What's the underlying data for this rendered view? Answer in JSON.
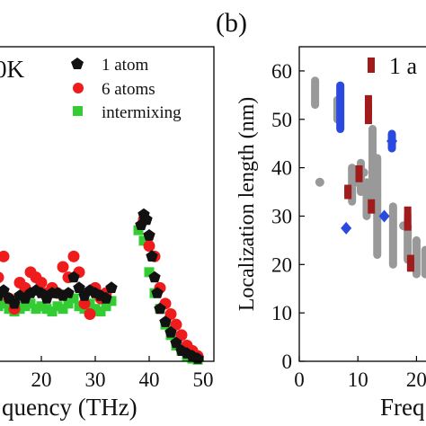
{
  "chart_data": [
    {
      "type": "scatter",
      "panel_label": "",
      "title": "0K",
      "xlabel": "quency (THz)",
      "ylabel": "",
      "xlim": [
        12,
        52
      ],
      "ylim": [
        0,
        60
      ],
      "xticks": [
        "20",
        "30",
        "40",
        "50"
      ],
      "xtick_values": [
        20,
        30,
        40,
        50
      ],
      "legend_position": "top-right",
      "series": [
        {
          "name": "1 atom",
          "marker": "pentagon",
          "color": "#111111",
          "x": [
            12.0,
            13.0,
            14.0,
            15.0,
            16.0,
            17.0,
            18.0,
            19.0,
            20.0,
            21.0,
            22.0,
            23.0,
            24.0,
            25.0,
            26.0,
            27.0,
            28.0,
            29.0,
            30.0,
            31.0,
            32.0,
            33.0,
            38.5,
            39.0,
            39.5,
            40.0,
            40.5,
            41.0,
            41.5,
            42.0,
            43.0,
            44.0,
            45.0,
            46.0,
            47.0,
            48.0,
            49.0
          ],
          "y": [
            12.5,
            13.5,
            12.0,
            11.0,
            12.5,
            12.0,
            13.0,
            13.5,
            13.0,
            12.0,
            13.0,
            13.0,
            12.5,
            13.0,
            16.0,
            14.0,
            12.5,
            13.5,
            13.0,
            12.5,
            12.0,
            14.0,
            26.0,
            28.0,
            27.0,
            24.0,
            20.0,
            16.0,
            13.0,
            10.0,
            7.5,
            5.5,
            3.5,
            2.0,
            1.5,
            1.0,
            0.5
          ]
        },
        {
          "name": "6 atoms",
          "marker": "circle",
          "color": "#ee1c1c",
          "x": [
            12.0,
            13.0,
            14.0,
            15.0,
            16.0,
            17.0,
            18.0,
            19.0,
            20.0,
            21.0,
            22.0,
            23.0,
            24.0,
            25.0,
            26.0,
            27.0,
            28.0,
            29.0,
            30.0,
            31.0,
            32.0,
            39.0,
            40.0,
            41.0,
            42.0,
            43.0,
            44.0,
            45.0,
            46.0,
            47.0,
            48.0,
            49.0
          ],
          "y": [
            16.0,
            20.0,
            12.0,
            10.0,
            15.0,
            14.0,
            17.0,
            16.0,
            15.0,
            13.0,
            14.0,
            13.0,
            18.0,
            16.0,
            20.0,
            17.0,
            11.0,
            9.0,
            14.0,
            12.0,
            13.0,
            27.0,
            22.0,
            20.0,
            14.0,
            11.0,
            9.0,
            7.0,
            5.0,
            3.0,
            2.0,
            1.0
          ]
        },
        {
          "name": "intermixing",
          "marker": "square",
          "color": "#33cc33",
          "x": [
            12.0,
            13.0,
            14.0,
            15.0,
            16.0,
            17.0,
            18.0,
            19.0,
            20.0,
            21.0,
            22.0,
            23.0,
            24.0,
            25.0,
            26.0,
            27.0,
            28.0,
            29.0,
            30.0,
            31.0,
            32.0,
            33.0,
            38.0,
            39.0,
            40.0,
            41.0,
            42.0,
            43.0,
            44.0,
            45.0,
            46.0,
            47.0,
            48.0,
            49.0
          ],
          "y": [
            10.5,
            11.0,
            10.0,
            9.5,
            10.0,
            10.5,
            11.0,
            10.0,
            10.5,
            10.0,
            9.5,
            10.5,
            10.0,
            11.0,
            12.0,
            10.5,
            10.0,
            11.0,
            10.0,
            9.5,
            10.5,
            11.5,
            25.0,
            23.0,
            17.0,
            13.0,
            10.0,
            7.0,
            5.0,
            3.0,
            2.0,
            1.0,
            0.5,
            0.3
          ]
        }
      ]
    },
    {
      "type": "scatter",
      "panel_label": "(b)",
      "title": "",
      "xlabel": "Freq",
      "ylabel": "Localization length (nm)",
      "xlim": [
        0,
        23
      ],
      "ylim": [
        0,
        65
      ],
      "xticks": [
        "0",
        "10",
        "20"
      ],
      "xtick_values": [
        0,
        10,
        20
      ],
      "yticks": [
        "0",
        "10",
        "20",
        "30",
        "40",
        "50",
        "60"
      ],
      "ytick_values": [
        0,
        10,
        20,
        30,
        40,
        50,
        60
      ],
      "legend_position": "top-right",
      "legend_text": "1 a",
      "series": [
        {
          "name": "1 a",
          "marker": "square",
          "color": "#a01c1c",
          "points": [
            [
              8.3,
              35
            ],
            [
              10.2,
              39
            ],
            [
              11.8,
              52
            ],
            [
              12.3,
              32
            ],
            [
              18.5,
              29
            ],
            [
              19.0,
              20
            ]
          ],
          "segments": [
            [
              8.3,
              34,
              36
            ],
            [
              10.2,
              37,
              40
            ],
            [
              11.8,
              49,
              55
            ],
            [
              18.5,
              27,
              32
            ],
            [
              19.0,
              19,
              22
            ]
          ]
        },
        {
          "name": "",
          "marker": "diamond",
          "color": "#2a49e0",
          "points": [
            [
              8.0,
              27.5
            ],
            [
              14.5,
              30.0
            ],
            [
              15.8,
              45.5
            ]
          ],
          "segments": [
            [
              7.0,
              48,
              57
            ],
            [
              15.8,
              44,
              47
            ]
          ]
        },
        {
          "name": "",
          "marker": "circle",
          "color": "#999999",
          "points": [
            [
              3.5,
              37
            ],
            [
              9.5,
              37
            ],
            [
              11.0,
              39
            ],
            [
              17.8,
              28
            ]
          ],
          "segments": [
            [
              2.7,
              53,
              58
            ],
            [
              6.5,
              50,
              54
            ],
            [
              9.0,
              33,
              40
            ],
            [
              10.5,
              35,
              41
            ],
            [
              11.5,
              30,
              37
            ],
            [
              12.5,
              33,
              48
            ],
            [
              13.3,
              22,
              42
            ],
            [
              16.0,
              20,
              32
            ],
            [
              18.5,
              21,
              28
            ],
            [
              20.0,
              18,
              25
            ],
            [
              21.5,
              18,
              23
            ]
          ]
        }
      ]
    }
  ]
}
